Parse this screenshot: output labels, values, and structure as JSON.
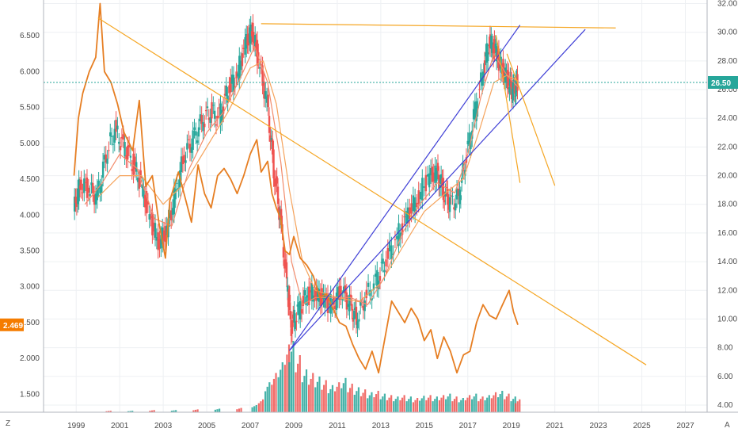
{
  "chart_data": {
    "type": "candlestick-with-overlays",
    "x_range": [
      1997.5,
      2028.0
    ],
    "x_ticks": [
      {
        "x": 1999,
        "label": "1999"
      },
      {
        "x": 2001,
        "label": "2001"
      },
      {
        "x": 2003,
        "label": "2003"
      },
      {
        "x": 2005,
        "label": "2005"
      },
      {
        "x": 2007,
        "label": "2007"
      },
      {
        "x": 2009,
        "label": "2009"
      },
      {
        "x": 2011,
        "label": "2011"
      },
      {
        "x": 2013,
        "label": "2013"
      },
      {
        "x": 2015,
        "label": "2015"
      },
      {
        "x": 2017,
        "label": "2017"
      },
      {
        "x": 2019,
        "label": "2019"
      },
      {
        "x": 2021,
        "label": "2021"
      },
      {
        "x": 2023,
        "label": "2023"
      },
      {
        "x": 2025,
        "label": "2025"
      },
      {
        "x": 2027,
        "label": "2027"
      }
    ],
    "left_axis": {
      "range": [
        1.25,
        7.0
      ],
      "ticks": [
        "1.500",
        "2.000",
        "2.500",
        "3.000",
        "3.500",
        "4.000",
        "4.500",
        "5.000",
        "5.500",
        "6.000",
        "6.500"
      ],
      "tick_values": [
        1.5,
        2.0,
        2.5,
        3.0,
        3.5,
        4.0,
        4.5,
        5.0,
        5.5,
        6.0,
        6.5
      ],
      "last_value": "2.469",
      "last_value_num": 2.469,
      "last_color": "#f57c00"
    },
    "right_axis": {
      "range": [
        3.5,
        32.25
      ],
      "ticks": [
        "4.00",
        "6.00",
        "8.00",
        "10.00",
        "12.00",
        "14.00",
        "16.00",
        "18.00",
        "20.00",
        "22.00",
        "24.00",
        "26.00",
        "28.00",
        "30.00",
        "32.00"
      ],
      "tick_values": [
        4,
        6,
        8,
        10,
        12,
        14,
        16,
        18,
        20,
        22,
        24,
        26,
        28,
        30,
        32
      ],
      "last_value": "26.50",
      "last_value_num": 26.5,
      "last_color": "#26a69a"
    },
    "price_series": {
      "axis": "right",
      "up_color": "#26a69a",
      "down_color": "#ef5350",
      "points": [
        [
          1998.9,
          17.5
        ],
        [
          1999.2,
          19.5
        ],
        [
          1999.6,
          19.0
        ],
        [
          2000.0,
          18.5
        ],
        [
          2000.4,
          21.5
        ],
        [
          2000.8,
          23.2
        ],
        [
          2001.2,
          22.0
        ],
        [
          2001.6,
          21.0
        ],
        [
          2002.0,
          19.5
        ],
        [
          2002.4,
          17.0
        ],
        [
          2002.8,
          15.5
        ],
        [
          2003.2,
          16.0
        ],
        [
          2003.6,
          19.0
        ],
        [
          2004.0,
          21.5
        ],
        [
          2004.4,
          22.5
        ],
        [
          2004.8,
          23.8
        ],
        [
          2005.2,
          24.5
        ],
        [
          2005.6,
          24.0
        ],
        [
          2006.0,
          26.0
        ],
        [
          2006.4,
          27.0
        ],
        [
          2006.8,
          29.0
        ],
        [
          2007.1,
          30.3
        ],
        [
          2007.4,
          28.0
        ],
        [
          2007.8,
          25.0
        ],
        [
          2008.1,
          20.5
        ],
        [
          2008.4,
          17.0
        ],
        [
          2008.7,
          12.5
        ],
        [
          2008.9,
          9.5
        ],
        [
          2009.2,
          10.5
        ],
        [
          2009.6,
          11.5
        ],
        [
          2010.0,
          12.0
        ],
        [
          2010.4,
          11.2
        ],
        [
          2010.8,
          11.0
        ],
        [
          2011.2,
          12.0
        ],
        [
          2011.6,
          11.0
        ],
        [
          2011.9,
          10.0
        ],
        [
          2012.3,
          11.5
        ],
        [
          2012.8,
          12.5
        ],
        [
          2013.2,
          14.0
        ],
        [
          2013.7,
          15.5
        ],
        [
          2014.2,
          17.0
        ],
        [
          2014.7,
          18.5
        ],
        [
          2015.2,
          19.8
        ],
        [
          2015.6,
          20.2
        ],
        [
          2015.9,
          19.0
        ],
        [
          2016.2,
          18.0
        ],
        [
          2016.6,
          18.5
        ],
        [
          2016.9,
          21.0
        ],
        [
          2017.3,
          24.0
        ],
        [
          2017.7,
          27.0
        ],
        [
          2018.0,
          29.5
        ],
        [
          2018.3,
          28.5
        ],
        [
          2018.6,
          27.5
        ],
        [
          2018.9,
          26.5
        ],
        [
          2019.1,
          25.8
        ],
        [
          2019.3,
          26.5
        ]
      ]
    },
    "ma_fast": {
      "axis": "right",
      "color": "#f28b6b",
      "points": [
        [
          1999.4,
          18.0
        ],
        [
          2000.2,
          19.5
        ],
        [
          2001.0,
          21.5
        ],
        [
          2001.8,
          20.5
        ],
        [
          2002.6,
          17.0
        ],
        [
          2003.4,
          16.5
        ],
        [
          2004.2,
          20.5
        ],
        [
          2005.0,
          23.0
        ],
        [
          2005.8,
          24.5
        ],
        [
          2006.6,
          27.0
        ],
        [
          2007.2,
          29.0
        ],
        [
          2007.8,
          26.5
        ],
        [
          2008.4,
          21.0
        ],
        [
          2008.9,
          14.0
        ],
        [
          2009.4,
          11.0
        ],
        [
          2010.0,
          11.5
        ],
        [
          2010.8,
          11.5
        ],
        [
          2011.6,
          11.5
        ],
        [
          2012.4,
          11.0
        ],
        [
          2013.2,
          13.0
        ],
        [
          2014.0,
          16.0
        ],
        [
          2014.8,
          18.0
        ],
        [
          2015.6,
          19.5
        ],
        [
          2016.4,
          18.8
        ],
        [
          2017.0,
          21.5
        ],
        [
          2017.6,
          25.5
        ],
        [
          2018.2,
          28.5
        ],
        [
          2018.8,
          27.0
        ],
        [
          2019.3,
          26.2
        ]
      ]
    },
    "ma_slow": {
      "axis": "right",
      "color": "#f5a35c",
      "points": [
        [
          2000.0,
          18.5
        ],
        [
          2001.0,
          20.0
        ],
        [
          2002.0,
          20.0
        ],
        [
          2003.0,
          18.0
        ],
        [
          2004.0,
          19.5
        ],
        [
          2005.0,
          22.0
        ],
        [
          2006.0,
          24.5
        ],
        [
          2007.0,
          27.5
        ],
        [
          2007.6,
          28.0
        ],
        [
          2008.2,
          25.0
        ],
        [
          2008.8,
          19.0
        ],
        [
          2009.4,
          14.0
        ],
        [
          2010.0,
          12.0
        ],
        [
          2011.0,
          11.5
        ],
        [
          2012.0,
          11.2
        ],
        [
          2013.0,
          12.5
        ],
        [
          2014.0,
          15.0
        ],
        [
          2015.0,
          17.5
        ],
        [
          2016.0,
          18.8
        ],
        [
          2016.8,
          19.8
        ],
        [
          2017.5,
          23.0
        ],
        [
          2018.2,
          26.5
        ],
        [
          2018.8,
          27.0
        ],
        [
          2019.3,
          26.6
        ]
      ]
    },
    "comparison_series": {
      "axis": "left",
      "color": "#e67e22",
      "points": [
        [
          1998.9,
          4.55
        ],
        [
          1999.1,
          5.35
        ],
        [
          1999.3,
          5.7
        ],
        [
          1999.6,
          6.0
        ],
        [
          1999.9,
          6.2
        ],
        [
          2000.1,
          6.95
        ],
        [
          2000.3,
          6.0
        ],
        [
          2000.6,
          5.85
        ],
        [
          2000.9,
          5.55
        ],
        [
          2001.2,
          5.15
        ],
        [
          2001.6,
          4.9
        ],
        [
          2001.9,
          5.6
        ],
        [
          2002.2,
          4.4
        ],
        [
          2002.5,
          4.55
        ],
        [
          2002.8,
          3.9
        ],
        [
          2003.1,
          3.4
        ],
        [
          2003.3,
          4.2
        ],
        [
          2003.7,
          4.6
        ],
        [
          2004.0,
          4.25
        ],
        [
          2004.3,
          3.9
        ],
        [
          2004.6,
          4.7
        ],
        [
          2004.9,
          4.3
        ],
        [
          2005.2,
          4.1
        ],
        [
          2005.5,
          4.55
        ],
        [
          2005.8,
          4.65
        ],
        [
          2006.1,
          4.5
        ],
        [
          2006.4,
          4.3
        ],
        [
          2006.7,
          4.55
        ],
        [
          2007.0,
          4.85
        ],
        [
          2007.3,
          5.05
        ],
        [
          2007.5,
          4.6
        ],
        [
          2007.8,
          4.75
        ],
        [
          2008.0,
          4.3
        ],
        [
          2008.2,
          4.1
        ],
        [
          2008.4,
          3.95
        ],
        [
          2008.6,
          3.5
        ],
        [
          2008.8,
          3.45
        ],
        [
          2009.0,
          3.7
        ],
        [
          2009.3,
          3.4
        ],
        [
          2009.6,
          3.3
        ],
        [
          2009.9,
          3.15
        ],
        [
          2010.2,
          2.85
        ],
        [
          2010.5,
          2.9
        ],
        [
          2010.8,
          2.7
        ],
        [
          2011.1,
          2.5
        ],
        [
          2011.4,
          2.45
        ],
        [
          2011.7,
          2.2
        ],
        [
          2012.0,
          2.0
        ],
        [
          2012.3,
          1.85
        ],
        [
          2012.6,
          2.1
        ],
        [
          2012.9,
          1.8
        ],
        [
          2013.2,
          2.3
        ],
        [
          2013.5,
          2.8
        ],
        [
          2013.8,
          2.65
        ],
        [
          2014.1,
          2.5
        ],
        [
          2014.4,
          2.7
        ],
        [
          2014.7,
          2.55
        ],
        [
          2015.0,
          2.25
        ],
        [
          2015.3,
          2.4
        ],
        [
          2015.6,
          2.0
        ],
        [
          2015.9,
          2.3
        ],
        [
          2016.2,
          2.1
        ],
        [
          2016.5,
          1.8
        ],
        [
          2016.8,
          2.05
        ],
        [
          2017.1,
          2.1
        ],
        [
          2017.4,
          2.5
        ],
        [
          2017.7,
          2.75
        ],
        [
          2018.0,
          2.6
        ],
        [
          2018.3,
          2.55
        ],
        [
          2018.6,
          2.75
        ],
        [
          2018.9,
          2.95
        ],
        [
          2019.1,
          2.65
        ],
        [
          2019.3,
          2.47
        ]
      ]
    },
    "volume": {
      "max": 100,
      "bars": [
        [
          2000.5,
          2
        ],
        [
          2001.5,
          2
        ],
        [
          2002.5,
          3
        ],
        [
          2003.5,
          3
        ],
        [
          2004.5,
          4
        ],
        [
          2005.5,
          5
        ],
        [
          2006.5,
          6
        ],
        [
          2007.2,
          10
        ],
        [
          2007.5,
          18
        ],
        [
          2007.8,
          42
        ],
        [
          2008.1,
          55
        ],
        [
          2008.4,
          70
        ],
        [
          2008.7,
          95
        ],
        [
          2008.9,
          100
        ],
        [
          2009.2,
          80
        ],
        [
          2009.5,
          60
        ],
        [
          2009.8,
          55
        ],
        [
          2010.1,
          50
        ],
        [
          2010.4,
          45
        ],
        [
          2010.7,
          38
        ],
        [
          2011.0,
          42
        ],
        [
          2011.3,
          48
        ],
        [
          2011.6,
          40
        ],
        [
          2011.9,
          35
        ],
        [
          2012.2,
          32
        ],
        [
          2012.5,
          28
        ],
        [
          2012.8,
          30
        ],
        [
          2013.1,
          26
        ],
        [
          2013.4,
          24
        ],
        [
          2013.7,
          22
        ],
        [
          2014.0,
          24
        ],
        [
          2014.3,
          22
        ],
        [
          2014.6,
          20
        ],
        [
          2014.9,
          23
        ],
        [
          2015.2,
          24
        ],
        [
          2015.5,
          22
        ],
        [
          2015.8,
          24
        ],
        [
          2016.1,
          26
        ],
        [
          2016.4,
          22
        ],
        [
          2016.7,
          20
        ],
        [
          2017.0,
          24
        ],
        [
          2017.3,
          26
        ],
        [
          2017.6,
          22
        ],
        [
          2017.9,
          24
        ],
        [
          2018.2,
          28
        ],
        [
          2018.5,
          30
        ],
        [
          2018.8,
          26
        ],
        [
          2019.1,
          22
        ],
        [
          2019.3,
          18
        ]
      ]
    },
    "drawings": [
      {
        "kind": "trend",
        "color": "#f5a623",
        "axis": "right",
        "from": [
          2000.0,
          31.0
        ],
        "to": [
          2025.2,
          6.8
        ]
      },
      {
        "kind": "trend",
        "color": "#f5a623",
        "axis": "right",
        "from": [
          2007.5,
          30.6
        ],
        "to": [
          2023.8,
          30.3
        ]
      },
      {
        "kind": "trend",
        "color": "#3f3fd6",
        "axis": "right",
        "from": [
          2008.8,
          7.8
        ],
        "to": [
          2019.4,
          30.5
        ]
      },
      {
        "kind": "trend",
        "color": "#3f3fd6",
        "axis": "right",
        "from": [
          2008.8,
          7.8
        ],
        "to": [
          2022.4,
          30.2
        ]
      },
      {
        "kind": "trend",
        "color": "#f5a623",
        "axis": "right",
        "from": [
          2018.3,
          29.8
        ],
        "to": [
          2019.4,
          19.5
        ]
      },
      {
        "kind": "trend",
        "color": "#f5a623",
        "axis": "right",
        "from": [
          2018.8,
          28.5
        ],
        "to": [
          2021.0,
          19.3
        ]
      }
    ]
  }
}
